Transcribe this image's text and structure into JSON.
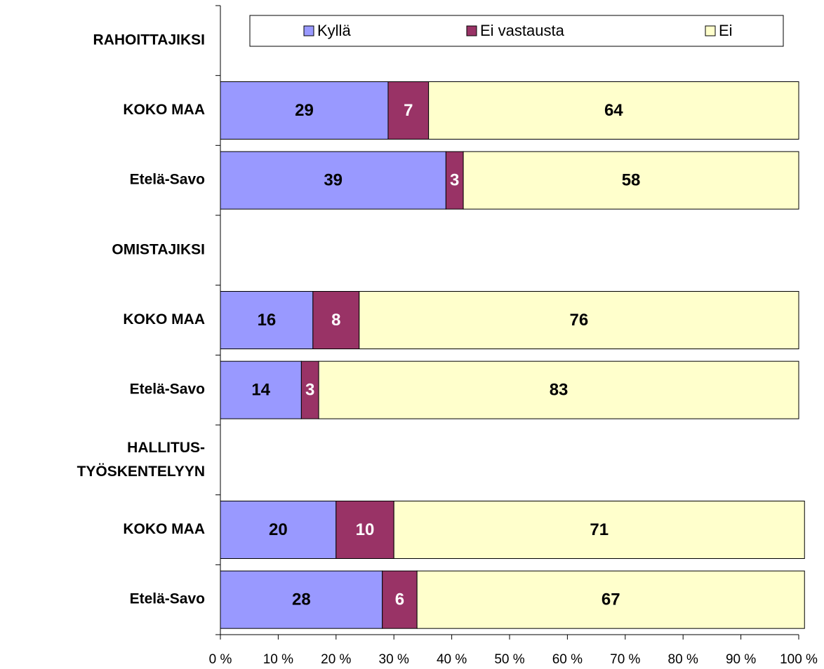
{
  "chart_data": {
    "type": "stacked-barh",
    "categories": [
      "RAHOITTAJIKSI",
      "KOKO MAA",
      "Etelä-Savo",
      "OMISTAJIKSI",
      "KOKO MAA",
      "Etelä-Savo",
      "HALLITUS-\nTYÖSKENTELYYN",
      "KOKO MAA",
      "Etelä-Savo"
    ],
    "series": [
      {
        "name": "Kyllä",
        "color": "#9999ff",
        "value_label_color": "#000000",
        "values": [
          null,
          29,
          39,
          null,
          16,
          14,
          null,
          20,
          28
        ]
      },
      {
        "name": "Ei vastausta",
        "color": "#993366",
        "value_label_color": "#ffffff",
        "values": [
          null,
          7,
          3,
          null,
          8,
          3,
          null,
          10,
          6
        ]
      },
      {
        "name": "Ei",
        "color": "#ffffcc",
        "value_label_color": "#000000",
        "values": [
          null,
          64,
          58,
          null,
          76,
          83,
          null,
          71,
          67
        ]
      }
    ],
    "xlim": [
      0,
      100
    ],
    "xticks": [
      {
        "value": 0,
        "label": "0 %"
      },
      {
        "value": 10,
        "label": "10 %"
      },
      {
        "value": 20,
        "label": "20 %"
      },
      {
        "value": 30,
        "label": "30 %"
      },
      {
        "value": 40,
        "label": "40 %"
      },
      {
        "value": 50,
        "label": "50 %"
      },
      {
        "value": 60,
        "label": "60 %"
      },
      {
        "value": 70,
        "label": "70 %"
      },
      {
        "value": 80,
        "label": "80 %"
      },
      {
        "value": 90,
        "label": "90 %"
      },
      {
        "value": 100,
        "label": "100 %"
      }
    ],
    "legend": "top"
  }
}
